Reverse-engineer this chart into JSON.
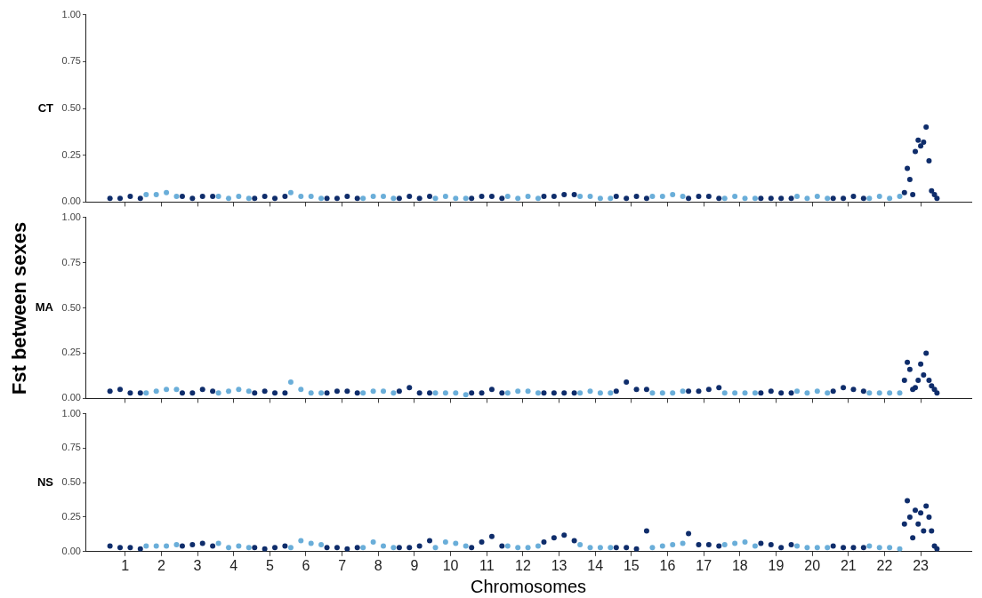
{
  "chart_data": [
    {
      "type": "scatter",
      "ylabel": "CT",
      "xlim": [
        -0.1,
        24.4
      ],
      "ylim": [
        0,
        1
      ],
      "tick_labels": "y",
      "grid": false,
      "legend": false,
      "marker": "circle",
      "xticks": [
        1,
        2,
        3,
        4,
        5,
        6,
        7,
        8,
        9,
        10,
        11,
        12,
        13,
        14,
        15,
        16,
        17,
        18,
        19,
        20,
        21,
        22,
        23
      ],
      "yticks": [
        {
          "value": 0,
          "label": "0.00"
        },
        {
          "value": 0.25,
          "label": "0.25"
        },
        {
          "value": 0.5,
          "label": "0.50"
        },
        {
          "value": 0.75,
          "label": "0.75"
        },
        {
          "value": 1,
          "label": "1.00"
        }
      ],
      "series": [
        {
          "color": "#0f2d6b",
          "x": [
            0.58,
            0.86,
            1.14,
            1.42,
            2.58,
            2.86,
            3.14,
            3.42,
            4.58,
            4.86,
            5.14,
            5.42,
            6.58,
            6.86,
            7.14,
            7.42,
            8.58,
            8.86,
            9.14,
            9.42,
            10.58,
            10.86,
            11.14,
            11.42,
            12.58,
            12.86,
            13.14,
            13.42,
            14.58,
            14.86,
            15.14,
            15.42,
            16.58,
            16.86,
            17.14,
            17.42,
            18.58,
            18.86,
            19.14,
            19.42,
            20.58,
            20.86,
            21.14,
            21.42,
            22.55,
            22.63,
            22.7,
            22.78,
            22.85,
            22.93,
            23.0,
            23.08,
            23.15,
            23.23,
            23.3,
            23.38,
            23.45
          ],
          "values": [
            0.02,
            0.02,
            0.03,
            0.02,
            0.03,
            0.02,
            0.03,
            0.03,
            0.02,
            0.03,
            0.02,
            0.03,
            0.02,
            0.02,
            0.03,
            0.02,
            0.02,
            0.03,
            0.02,
            0.03,
            0.02,
            0.03,
            0.03,
            0.02,
            0.03,
            0.03,
            0.04,
            0.04,
            0.03,
            0.02,
            0.03,
            0.02,
            0.02,
            0.03,
            0.03,
            0.02,
            0.02,
            0.02,
            0.02,
            0.02,
            0.02,
            0.02,
            0.03,
            0.02,
            0.05,
            0.18,
            0.12,
            0.04,
            0.27,
            0.33,
            0.3,
            0.32,
            0.4,
            0.22,
            0.06,
            0.04,
            0.02
          ]
        },
        {
          "color": "#6aaed9",
          "x": [
            1.58,
            1.86,
            2.14,
            2.42,
            3.58,
            3.86,
            4.14,
            4.42,
            5.58,
            5.86,
            6.14,
            6.42,
            7.58,
            7.86,
            8.14,
            8.42,
            9.58,
            9.86,
            10.14,
            10.42,
            11.58,
            11.86,
            12.14,
            12.42,
            13.58,
            13.86,
            14.14,
            14.42,
            15.58,
            15.86,
            16.14,
            16.42,
            17.58,
            17.86,
            18.14,
            18.42,
            19.58,
            19.86,
            20.14,
            20.42,
            21.58,
            21.86,
            22.14,
            22.42
          ],
          "values": [
            0.04,
            0.04,
            0.05,
            0.03,
            0.03,
            0.02,
            0.03,
            0.02,
            0.05,
            0.03,
            0.03,
            0.02,
            0.02,
            0.03,
            0.03,
            0.02,
            0.02,
            0.03,
            0.02,
            0.02,
            0.03,
            0.02,
            0.03,
            0.02,
            0.03,
            0.03,
            0.02,
            0.02,
            0.03,
            0.03,
            0.04,
            0.03,
            0.02,
            0.03,
            0.02,
            0.02,
            0.03,
            0.02,
            0.03,
            0.02,
            0.02,
            0.03,
            0.02,
            0.03
          ]
        }
      ]
    },
    {
      "type": "scatter",
      "ylabel": "MA",
      "annotations": [
        "Fst between sexes"
      ],
      "xlim": [
        -0.1,
        24.4
      ],
      "ylim": [
        0,
        1
      ],
      "tick_labels": "y",
      "grid": false,
      "legend": false,
      "marker": "circle",
      "xticks": [
        1,
        2,
        3,
        4,
        5,
        6,
        7,
        8,
        9,
        10,
        11,
        12,
        13,
        14,
        15,
        16,
        17,
        18,
        19,
        20,
        21,
        22,
        23
      ],
      "yticks": [
        {
          "value": 0,
          "label": "0.00"
        },
        {
          "value": 0.25,
          "label": "0.25"
        },
        {
          "value": 0.5,
          "label": "0.50"
        },
        {
          "value": 0.75,
          "label": "0.75"
        },
        {
          "value": 1,
          "label": "1.00"
        }
      ],
      "series": [
        {
          "color": "#0f2d6b",
          "x": [
            0.58,
            0.86,
            1.14,
            1.42,
            2.58,
            2.86,
            3.14,
            3.42,
            4.58,
            4.86,
            5.14,
            5.42,
            6.58,
            6.86,
            7.14,
            7.42,
            8.58,
            8.86,
            9.14,
            9.42,
            10.58,
            10.86,
            11.14,
            11.42,
            12.58,
            12.86,
            13.14,
            13.42,
            14.58,
            14.86,
            15.14,
            15.42,
            16.58,
            16.86,
            17.14,
            17.42,
            18.58,
            18.86,
            19.14,
            19.42,
            20.58,
            20.86,
            21.14,
            21.42,
            22.55,
            22.63,
            22.7,
            22.78,
            22.85,
            22.93,
            23.0,
            23.08,
            23.15,
            23.23,
            23.3,
            23.38,
            23.45
          ],
          "values": [
            0.04,
            0.05,
            0.03,
            0.03,
            0.03,
            0.03,
            0.05,
            0.04,
            0.03,
            0.04,
            0.03,
            0.03,
            0.03,
            0.04,
            0.04,
            0.03,
            0.04,
            0.06,
            0.03,
            0.03,
            0.03,
            0.03,
            0.05,
            0.03,
            0.03,
            0.03,
            0.03,
            0.03,
            0.04,
            0.09,
            0.05,
            0.05,
            0.04,
            0.04,
            0.05,
            0.06,
            0.03,
            0.04,
            0.03,
            0.03,
            0.04,
            0.06,
            0.05,
            0.04,
            0.1,
            0.2,
            0.16,
            0.05,
            0.06,
            0.1,
            0.19,
            0.13,
            0.25,
            0.1,
            0.07,
            0.05,
            0.03
          ]
        },
        {
          "color": "#6aaed9",
          "x": [
            1.58,
            1.86,
            2.14,
            2.42,
            3.58,
            3.86,
            4.14,
            4.42,
            5.58,
            5.86,
            6.14,
            6.42,
            7.58,
            7.86,
            8.14,
            8.42,
            9.58,
            9.86,
            10.14,
            10.42,
            11.58,
            11.86,
            12.14,
            12.42,
            13.58,
            13.86,
            14.14,
            14.42,
            15.58,
            15.86,
            16.14,
            16.42,
            17.58,
            17.86,
            18.14,
            18.42,
            19.58,
            19.86,
            20.14,
            20.42,
            21.58,
            21.86,
            22.14,
            22.42
          ],
          "values": [
            0.03,
            0.04,
            0.05,
            0.05,
            0.03,
            0.04,
            0.05,
            0.04,
            0.09,
            0.05,
            0.03,
            0.03,
            0.03,
            0.04,
            0.04,
            0.03,
            0.03,
            0.03,
            0.03,
            0.02,
            0.03,
            0.04,
            0.04,
            0.03,
            0.03,
            0.04,
            0.03,
            0.03,
            0.03,
            0.03,
            0.03,
            0.04,
            0.03,
            0.03,
            0.03,
            0.03,
            0.04,
            0.03,
            0.04,
            0.03,
            0.03,
            0.03,
            0.03,
            0.03
          ]
        }
      ]
    },
    {
      "type": "scatter",
      "ylabel": "NS",
      "xlabel": "Chromosomes",
      "xlim": [
        -0.1,
        24.4
      ],
      "ylim": [
        0,
        1
      ],
      "grid": false,
      "legend": false,
      "marker": "circle",
      "xticks": [
        1,
        2,
        3,
        4,
        5,
        6,
        7,
        8,
        9,
        10,
        11,
        12,
        13,
        14,
        15,
        16,
        17,
        18,
        19,
        20,
        21,
        22,
        23
      ],
      "yticks": [
        {
          "value": 0,
          "label": "0.00"
        },
        {
          "value": 0.25,
          "label": "0.25"
        },
        {
          "value": 0.5,
          "label": "0.50"
        },
        {
          "value": 0.75,
          "label": "0.75"
        },
        {
          "value": 1,
          "label": "1.00"
        }
      ],
      "series": [
        {
          "color": "#0f2d6b",
          "x": [
            0.58,
            0.86,
            1.14,
            1.42,
            2.58,
            2.86,
            3.14,
            3.42,
            4.58,
            4.86,
            5.14,
            5.42,
            6.58,
            6.86,
            7.14,
            7.42,
            8.58,
            8.86,
            9.14,
            9.42,
            10.58,
            10.86,
            11.14,
            11.42,
            12.58,
            12.86,
            13.14,
            13.42,
            14.58,
            14.86,
            15.14,
            15.42,
            16.58,
            16.86,
            17.14,
            17.42,
            18.58,
            18.86,
            19.14,
            19.42,
            20.58,
            20.86,
            21.14,
            21.42,
            22.55,
            22.63,
            22.7,
            22.78,
            22.85,
            22.93,
            23.0,
            23.08,
            23.15,
            23.23,
            23.3,
            23.38,
            23.45
          ],
          "values": [
            0.04,
            0.03,
            0.03,
            0.02,
            0.04,
            0.05,
            0.06,
            0.04,
            0.03,
            0.02,
            0.03,
            0.04,
            0.03,
            0.03,
            0.02,
            0.03,
            0.03,
            0.03,
            0.04,
            0.08,
            0.03,
            0.07,
            0.11,
            0.04,
            0.07,
            0.1,
            0.12,
            0.08,
            0.03,
            0.03,
            0.02,
            0.15,
            0.13,
            0.05,
            0.05,
            0.04,
            0.06,
            0.05,
            0.03,
            0.05,
            0.04,
            0.03,
            0.03,
            0.03,
            0.2,
            0.37,
            0.25,
            0.1,
            0.3,
            0.2,
            0.28,
            0.15,
            0.33,
            0.25,
            0.15,
            0.04,
            0.02
          ]
        },
        {
          "color": "#6aaed9",
          "x": [
            1.58,
            1.86,
            2.14,
            2.42,
            3.58,
            3.86,
            4.14,
            4.42,
            5.58,
            5.86,
            6.14,
            6.42,
            7.58,
            7.86,
            8.14,
            8.42,
            9.58,
            9.86,
            10.14,
            10.42,
            11.58,
            11.86,
            12.14,
            12.42,
            13.58,
            13.86,
            14.14,
            14.42,
            15.58,
            15.86,
            16.14,
            16.42,
            17.58,
            17.86,
            18.14,
            18.42,
            19.58,
            19.86,
            20.14,
            20.42,
            21.58,
            21.86,
            22.14,
            22.42
          ],
          "values": [
            0.04,
            0.04,
            0.04,
            0.05,
            0.06,
            0.03,
            0.04,
            0.03,
            0.03,
            0.08,
            0.06,
            0.05,
            0.03,
            0.07,
            0.04,
            0.03,
            0.03,
            0.07,
            0.06,
            0.04,
            0.04,
            0.03,
            0.03,
            0.04,
            0.05,
            0.03,
            0.03,
            0.03,
            0.03,
            0.04,
            0.05,
            0.06,
            0.05,
            0.06,
            0.07,
            0.04,
            0.04,
            0.03,
            0.03,
            0.03,
            0.04,
            0.03,
            0.03,
            0.02
          ]
        }
      ]
    }
  ]
}
